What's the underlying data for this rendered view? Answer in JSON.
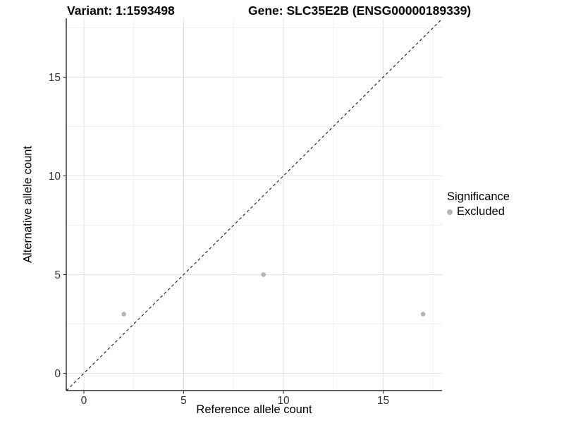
{
  "chart_data": {
    "type": "scatter",
    "title_variant": "Variant: 1:1593498",
    "title_gene": "Gene: SLC35E2B (ENSG00000189339)",
    "xlabel": "Reference allele count",
    "ylabel": "Alternative allele count",
    "xlim": [
      -0.883,
      17.95
    ],
    "ylim": [
      -0.875,
      17.98
    ],
    "xticks": [
      0,
      5,
      10,
      15
    ],
    "yticks": [
      0,
      5,
      10,
      15
    ],
    "minor_gridlines_at": [
      2.5,
      7.5,
      12.5,
      17.5
    ],
    "grid": true,
    "legend_position": "right",
    "series": [
      {
        "name": "Excluded",
        "points": [
          {
            "x": 2,
            "y": 3
          },
          {
            "x": 9,
            "y": 5
          },
          {
            "x": 17,
            "y": 3
          }
        ]
      }
    ],
    "identity_line": {
      "type": "identity",
      "style": "dashed",
      "equation": "y = x"
    },
    "legend": {
      "title": "Significance",
      "entries": [
        {
          "label": "Excluded",
          "color": "#b5b5b5"
        }
      ]
    },
    "colors": {
      "point": "#b5b5b5",
      "grid_major": "#e3e3e3",
      "grid_minor": "#f0f0f0",
      "axis_line": "#000000",
      "tick": "#333333",
      "tick_label": "#333333",
      "dashed_line": "#1a1a1a",
      "background": "#ffffff"
    }
  }
}
